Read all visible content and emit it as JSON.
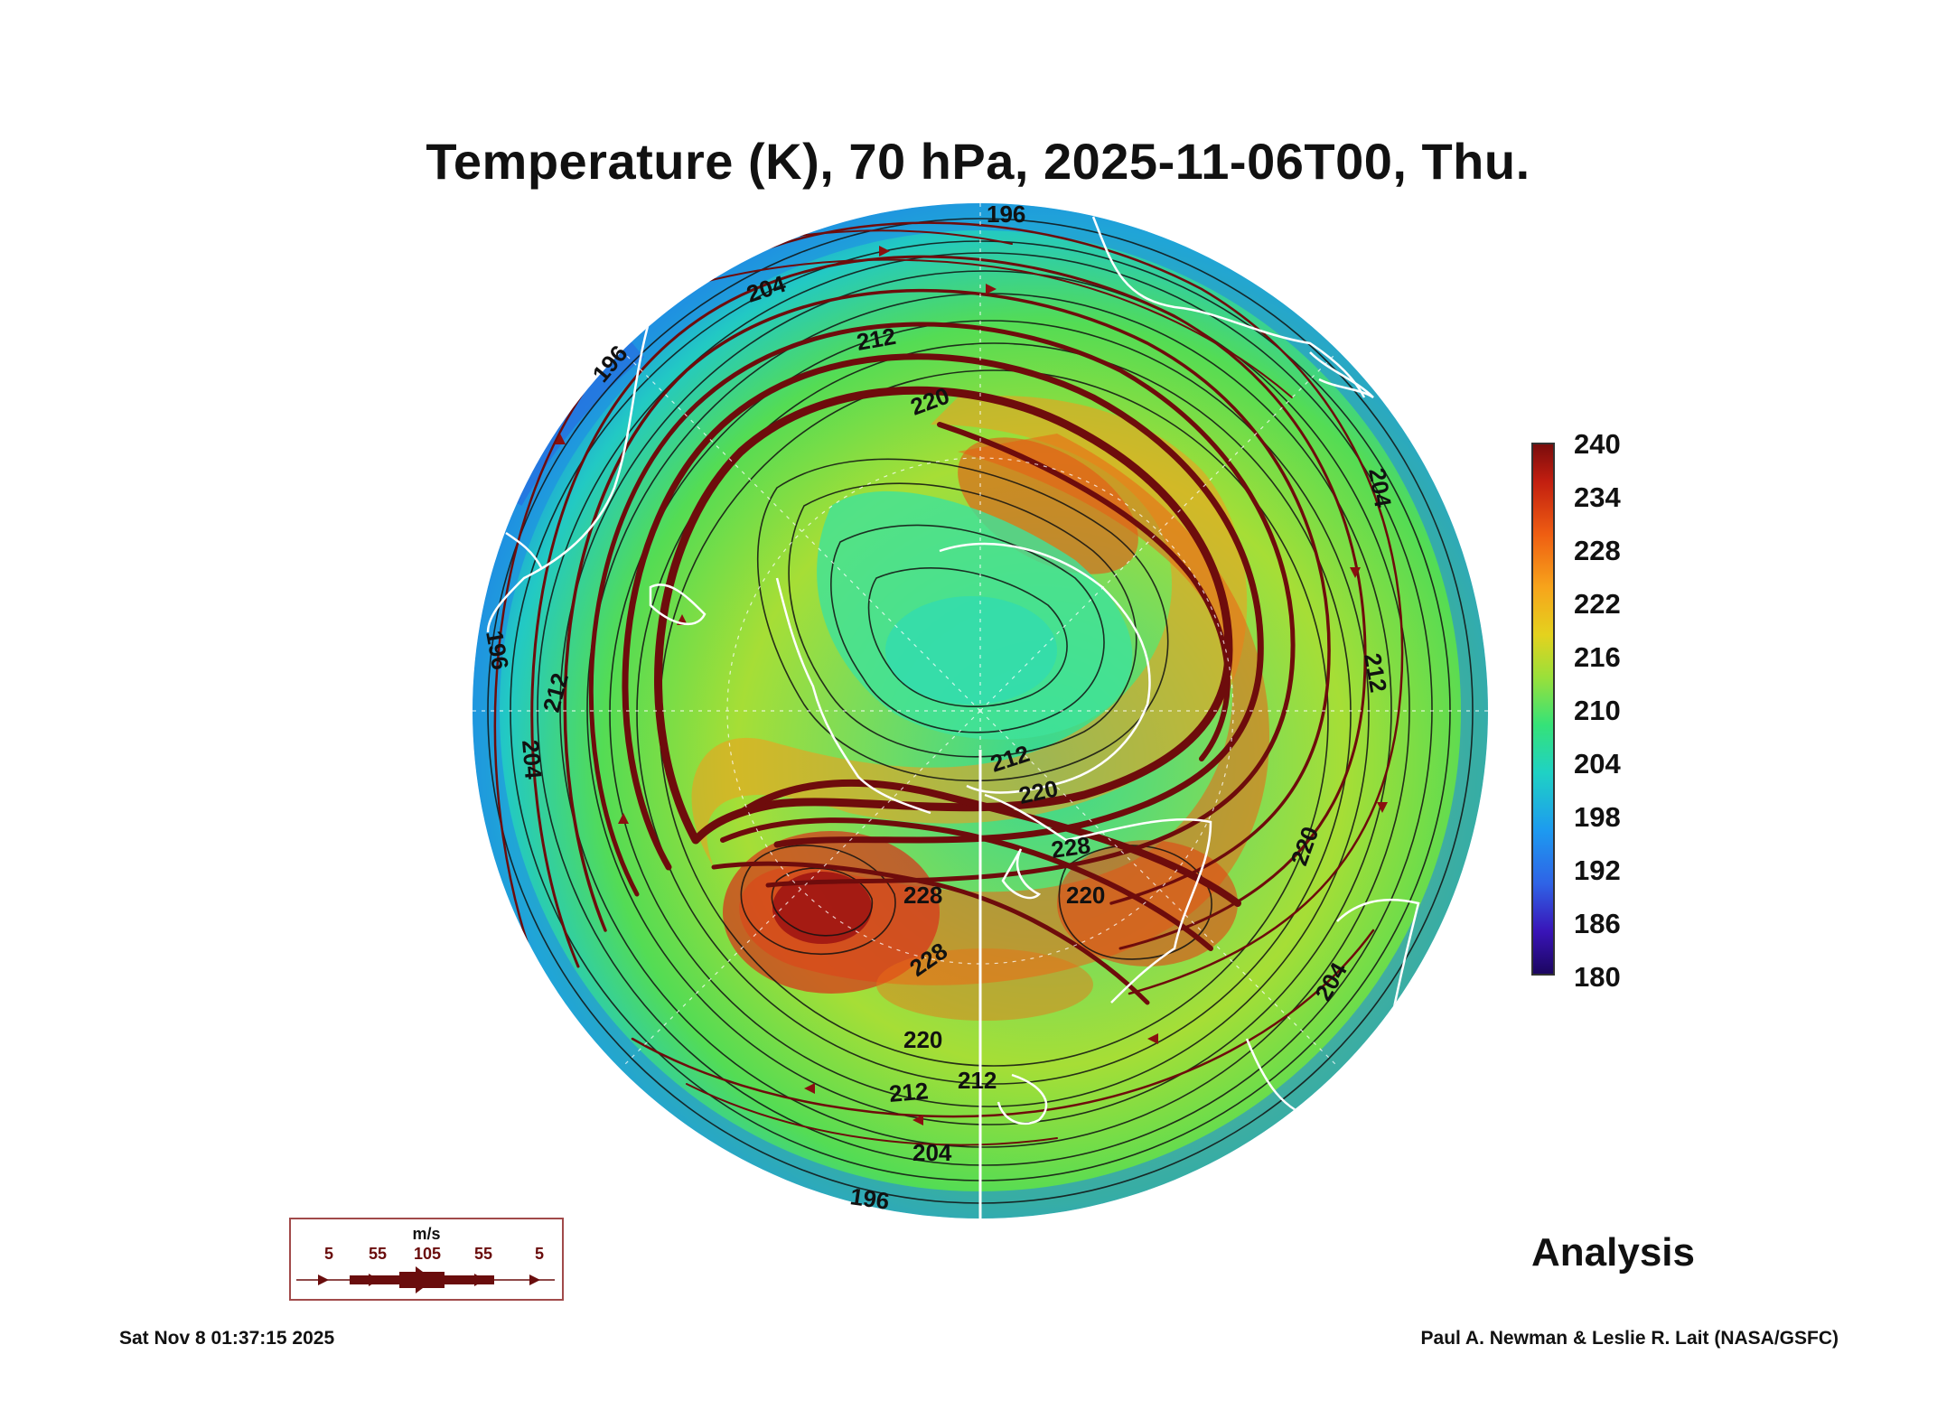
{
  "title": "Temperature (K), 70 hPa, 2025-11-06T00, Thu.",
  "colorbar": {
    "labels": [
      "240",
      "234",
      "228",
      "222",
      "216",
      "210",
      "204",
      "198",
      "192",
      "186",
      "180"
    ]
  },
  "contour_labels": [
    "196",
    "204",
    "196",
    "196",
    "204",
    "212",
    "212",
    "220",
    "212",
    "220",
    "228",
    "228",
    "220",
    "212",
    "220",
    "212",
    "204",
    "196",
    "204",
    "204",
    "212",
    "220",
    "228"
  ],
  "wind_legend": {
    "unit": "m/s",
    "ticks": [
      "5",
      "55",
      "105",
      "55",
      "5"
    ]
  },
  "status": "Analysis",
  "footer": {
    "timestamp": "Sat Nov  8 01:37:15 2025",
    "credit": "Paul A. Newman & Leslie R. Lait (NASA/GSFC)"
  },
  "colors": {
    "jet": "#6e0c0c",
    "contour": "#111111",
    "coast": "#ffffff"
  }
}
